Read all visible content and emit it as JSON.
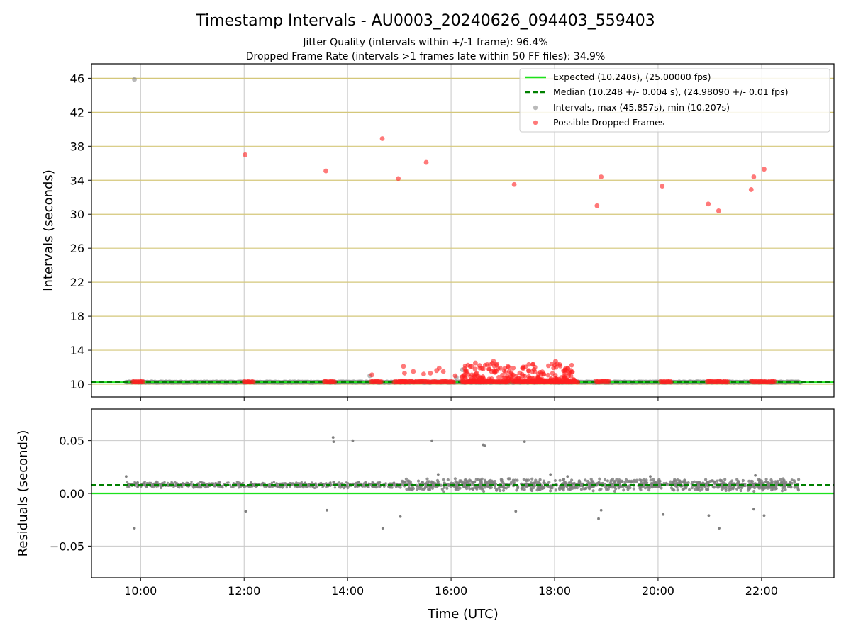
{
  "chart_data": [
    {
      "type": "scatter",
      "title": "Timestamp Intervals - AU0003_20240626_094403_559403",
      "subtitle_lines": [
        "Jitter Quality (intervals within +/-1 frame): 96.4%",
        "Dropped Frame Rate (intervals >1 frames late within 50 FF files): 34.9%"
      ],
      "xlabel": "",
      "ylabel": "Intervals (seconds)",
      "x_unit": "hours UTC",
      "xlim": [
        9.05,
        23.4
      ],
      "ylim": [
        8.5,
        47.7
      ],
      "yticks": [
        10,
        14,
        18,
        22,
        26,
        30,
        34,
        38,
        42,
        46
      ],
      "grid": {
        "x": true,
        "y": true,
        "y_color": "#d4c77a"
      },
      "legend_position": "top-right",
      "legend": [
        "Expected (10.240s), (25.00000 fps)",
        "Median (10.248 +/- 0.004 s), (24.98090 +/- 0.01 fps)",
        "Intervals, max (45.857s), min (10.207s)",
        "Possible Dropped Frames"
      ],
      "expected_interval": 10.24,
      "median_interval": 10.248,
      "interval_range_x": [
        9.72,
        22.75
      ],
      "interval_max": 45.857,
      "interval_max_time": 9.88,
      "interval_min": 10.207,
      "gray_outliers": [
        {
          "x": 9.88,
          "y": 45.86
        },
        {
          "x": 14.43,
          "y": 11.0
        },
        {
          "x": 16.22,
          "y": 11.7
        },
        {
          "x": 16.1,
          "y": 10.8
        }
      ],
      "dropped_frames": [
        {
          "x": 12.02,
          "y": 37.0
        },
        {
          "x": 13.58,
          "y": 35.1
        },
        {
          "x": 14.67,
          "y": 38.9
        },
        {
          "x": 14.98,
          "y": 34.2
        },
        {
          "x": 15.52,
          "y": 36.1
        },
        {
          "x": 17.22,
          "y": 33.5
        },
        {
          "x": 18.82,
          "y": 31.0
        },
        {
          "x": 18.9,
          "y": 34.4
        },
        {
          "x": 20.08,
          "y": 33.3
        },
        {
          "x": 20.97,
          "y": 31.2
        },
        {
          "x": 21.17,
          "y": 30.4
        },
        {
          "x": 21.8,
          "y": 32.9
        },
        {
          "x": 21.85,
          "y": 34.4
        },
        {
          "x": 22.05,
          "y": 35.3
        },
        {
          "x": 14.47,
          "y": 11.1
        },
        {
          "x": 15.08,
          "y": 12.1
        },
        {
          "x": 15.1,
          "y": 11.3
        },
        {
          "x": 15.27,
          "y": 11.5
        },
        {
          "x": 15.47,
          "y": 11.2
        },
        {
          "x": 15.6,
          "y": 11.3
        },
        {
          "x": 15.72,
          "y": 11.6
        },
        {
          "x": 15.77,
          "y": 11.9
        },
        {
          "x": 15.85,
          "y": 11.5
        },
        {
          "x": 16.08,
          "y": 11.0
        },
        {
          "x": 16.3,
          "y": 11.4
        },
        {
          "x": 16.4,
          "y": 12.1
        },
        {
          "x": 16.47,
          "y": 12.5
        },
        {
          "x": 16.55,
          "y": 12.2
        },
        {
          "x": 16.62,
          "y": 11.8
        },
        {
          "x": 16.7,
          "y": 12.3
        },
        {
          "x": 16.78,
          "y": 11.5
        },
        {
          "x": 16.82,
          "y": 12.7
        },
        {
          "x": 16.88,
          "y": 12.4
        },
        {
          "x": 16.95,
          "y": 11.9
        },
        {
          "x": 17.05,
          "y": 11.4
        },
        {
          "x": 17.2,
          "y": 11.9
        },
        {
          "x": 17.38,
          "y": 11.9
        },
        {
          "x": 17.5,
          "y": 11.6
        },
        {
          "x": 17.62,
          "y": 12.0
        },
        {
          "x": 17.72,
          "y": 11.4
        },
        {
          "x": 17.95,
          "y": 12.4
        },
        {
          "x": 18.02,
          "y": 12.7
        },
        {
          "x": 18.1,
          "y": 12.3
        },
        {
          "x": 18.2,
          "y": 11.3
        },
        {
          "x": 18.27,
          "y": 11.0
        }
      ],
      "dropped_clusters": [
        {
          "x_start": 9.85,
          "x_end": 10.05,
          "y": 10.24
        },
        {
          "x_start": 12.0,
          "x_end": 12.18,
          "y": 10.24
        },
        {
          "x_start": 13.55,
          "x_end": 13.75,
          "y": 10.24
        },
        {
          "x_start": 14.45,
          "x_end": 14.65,
          "y": 10.24
        },
        {
          "x_start": 14.9,
          "x_end": 15.12,
          "y": 10.24
        },
        {
          "x_start": 15.0,
          "x_end": 16.05,
          "y": 10.24
        },
        {
          "x_start": 16.2,
          "x_end": 17.1,
          "y": 10.24
        },
        {
          "x_start": 17.3,
          "x_end": 18.45,
          "y": 10.24
        },
        {
          "x_start": 18.8,
          "x_end": 19.05,
          "y": 10.24
        },
        {
          "x_start": 20.05,
          "x_end": 20.25,
          "y": 10.24
        },
        {
          "x_start": 20.95,
          "x_end": 21.35,
          "y": 10.24
        },
        {
          "x_start": 21.8,
          "x_end": 22.25,
          "y": 10.24
        }
      ]
    },
    {
      "type": "scatter",
      "title": "",
      "xlabel": "Time (UTC)",
      "ylabel": "Residuals (seconds)",
      "xlim": [
        9.05,
        23.4
      ],
      "ylim": [
        -0.08,
        0.08
      ],
      "yticks": [
        -0.05,
        0.0,
        0.05
      ],
      "ytick_labels": [
        "−0.05",
        "0.00",
        "0.05"
      ],
      "xticks": [
        10,
        12,
        14,
        16,
        18,
        20,
        22
      ],
      "xtick_labels": [
        "10:00",
        "12:00",
        "14:00",
        "16:00",
        "18:00",
        "20:00",
        "22:00"
      ],
      "grid": {
        "x": true,
        "y": true
      },
      "expected_residual": 0.0,
      "median_residual": 0.008,
      "residual_band": {
        "x_start": 9.72,
        "x_end": 22.75,
        "center": 0.008,
        "spread_sparse": 0.002,
        "spread_dense": 0.004,
        "dense_start": 15.0
      },
      "residual_outliers": [
        {
          "x": 9.88,
          "y": -0.033
        },
        {
          "x": 12.03,
          "y": -0.017
        },
        {
          "x": 13.6,
          "y": -0.016
        },
        {
          "x": 13.72,
          "y": 0.053
        },
        {
          "x": 13.73,
          "y": 0.049
        },
        {
          "x": 14.1,
          "y": 0.05
        },
        {
          "x": 14.68,
          "y": -0.033
        },
        {
          "x": 15.02,
          "y": -0.022
        },
        {
          "x": 15.63,
          "y": 0.05
        },
        {
          "x": 16.62,
          "y": 0.046
        },
        {
          "x": 16.65,
          "y": 0.045
        },
        {
          "x": 17.25,
          "y": -0.017
        },
        {
          "x": 17.42,
          "y": 0.049
        },
        {
          "x": 18.85,
          "y": -0.024
        },
        {
          "x": 18.9,
          "y": -0.016
        },
        {
          "x": 20.1,
          "y": -0.02
        },
        {
          "x": 20.98,
          "y": -0.021
        },
        {
          "x": 21.18,
          "y": -0.033
        },
        {
          "x": 21.85,
          "y": -0.015
        },
        {
          "x": 22.05,
          "y": -0.021
        },
        {
          "x": 9.72,
          "y": 0.016
        },
        {
          "x": 15.75,
          "y": 0.018
        },
        {
          "x": 17.92,
          "y": 0.018
        },
        {
          "x": 21.88,
          "y": 0.017
        },
        {
          "x": 18.25,
          "y": 0.016
        },
        {
          "x": 19.85,
          "y": 0.016
        }
      ]
    }
  ],
  "colors": {
    "expected": "#1ce11c",
    "median": "#008000",
    "intervals": "#808080",
    "dropped": "#ff2020",
    "grid_x": "#c8c8c8",
    "grid_y_top": "#d4c77a"
  }
}
